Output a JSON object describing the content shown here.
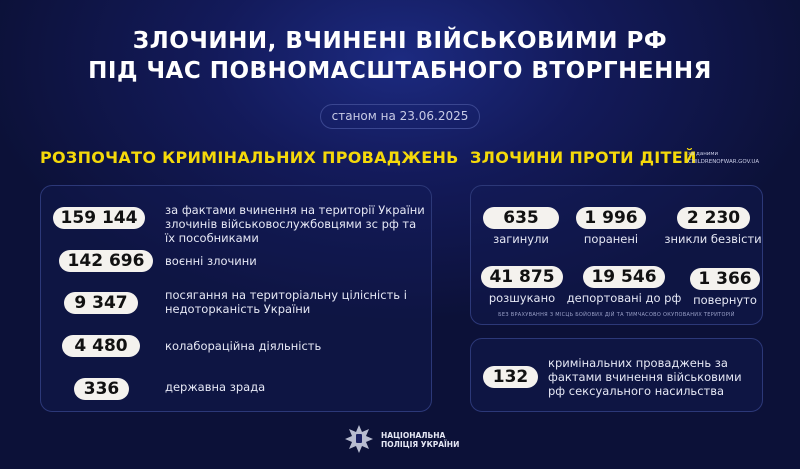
{
  "title": {
    "line1": "ЗЛОЧИНИ, ВЧИНЕНІ ВІЙСЬКОВИМИ РФ",
    "line2": "ПІД ЧАС ПОВНОМАСШТАБНОГО ВТОРГНЕННЯ"
  },
  "date": "станом на 23.06.2025",
  "left": {
    "heading": "РОЗПОЧАТО КРИМІНАЛЬНИХ ПРОВАДЖЕНЬ",
    "items": [
      {
        "value": "159 144",
        "text": "за фактами вчинення на території України злочинів військовослужбовцями зс рф та їх пособниками"
      },
      {
        "value": "142 696",
        "text": "воєнні злочини"
      },
      {
        "value": "9 347",
        "text": "посягання на територіальну цілісність і недоторканість України"
      },
      {
        "value": "4 480",
        "text": "колабораційна діяльність"
      },
      {
        "value": "336",
        "text": "державна зрада"
      }
    ]
  },
  "right": {
    "heading": "ЗЛОЧИНИ ПРОТИ ДІТЕЙ",
    "source_label": "за даними",
    "source": "CHILDRENOFWAR.GOV.UA",
    "stats": [
      {
        "value": "635",
        "label": "загинули"
      },
      {
        "value": "1 996",
        "label": "поранені"
      },
      {
        "value": "2 230",
        "label": "зникли безвісти"
      },
      {
        "value": "41 875",
        "label": "розшукано"
      },
      {
        "value": "19 546",
        "label": "депортовані до рф"
      },
      {
        "value": "1 366",
        "label": "повернуто"
      }
    ],
    "note": "БЕЗ ВРАХУВАННЯ З МІСЦЬ БОЙОВИХ ДІЙ ТА ТИМЧАСОВО ОКУПОВАНИХ ТЕРИТОРІЙ",
    "sexual": {
      "value": "132",
      "text": "кримінальних проваджень за фактами вчинення військовими рф сексуального насильства"
    }
  },
  "footer": {
    "logo_line1": "НАЦІОНАЛЬНА",
    "logo_line2": "ПОЛІЦІЯ УКРАЇНИ"
  },
  "colors": {
    "accent": "#f5d90a",
    "background": "#0c1138"
  }
}
